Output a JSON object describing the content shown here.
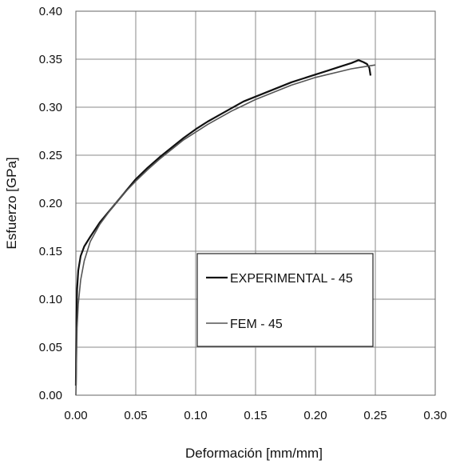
{
  "chart_data": {
    "type": "line",
    "title": "",
    "xlabel": "Deformación [mm/mm]",
    "ylabel": "Esfuerzo [GPa]",
    "xlim": [
      0,
      0.3
    ],
    "ylim": [
      0,
      0.4
    ],
    "x_ticks": [
      "0.00",
      "0.05",
      "0.10",
      "0.15",
      "0.20",
      "0.25",
      "0.30"
    ],
    "y_ticks": [
      "0.00",
      "0.05",
      "0.10",
      "0.15",
      "0.20",
      "0.25",
      "0.30",
      "0.35",
      "0.40"
    ],
    "grid": true,
    "legend_position": "lower-right",
    "series": [
      {
        "name": "EXPERIMENTAL - 45",
        "color": "#111111",
        "x": [
          0.0,
          0.0005,
          0.001,
          0.002,
          0.004,
          0.007,
          0.012,
          0.02,
          0.03,
          0.04,
          0.05,
          0.06,
          0.07,
          0.08,
          0.09,
          0.1,
          0.11,
          0.12,
          0.13,
          0.14,
          0.15,
          0.16,
          0.17,
          0.18,
          0.19,
          0.2,
          0.21,
          0.22,
          0.23,
          0.236,
          0.24,
          0.243,
          0.245,
          0.246
        ],
        "y": [
          0.01,
          0.08,
          0.11,
          0.13,
          0.145,
          0.155,
          0.165,
          0.18,
          0.195,
          0.21,
          0.225,
          0.237,
          0.248,
          0.258,
          0.268,
          0.277,
          0.285,
          0.292,
          0.299,
          0.306,
          0.311,
          0.316,
          0.321,
          0.326,
          0.33,
          0.334,
          0.338,
          0.342,
          0.346,
          0.349,
          0.347,
          0.345,
          0.341,
          0.333
        ]
      },
      {
        "name": "FEM - 45",
        "color": "#555555",
        "x": [
          0.0,
          0.001,
          0.002,
          0.004,
          0.007,
          0.012,
          0.02,
          0.03,
          0.04,
          0.05,
          0.06,
          0.07,
          0.08,
          0.09,
          0.1,
          0.11,
          0.12,
          0.13,
          0.14,
          0.15,
          0.16,
          0.17,
          0.18,
          0.19,
          0.2,
          0.21,
          0.22,
          0.23,
          0.24,
          0.25
        ],
        "y": [
          0.0,
          0.07,
          0.095,
          0.12,
          0.14,
          0.16,
          0.178,
          0.195,
          0.21,
          0.223,
          0.235,
          0.246,
          0.256,
          0.266,
          0.274,
          0.282,
          0.289,
          0.296,
          0.302,
          0.308,
          0.313,
          0.318,
          0.323,
          0.327,
          0.331,
          0.334,
          0.337,
          0.34,
          0.342,
          0.344
        ]
      }
    ]
  }
}
